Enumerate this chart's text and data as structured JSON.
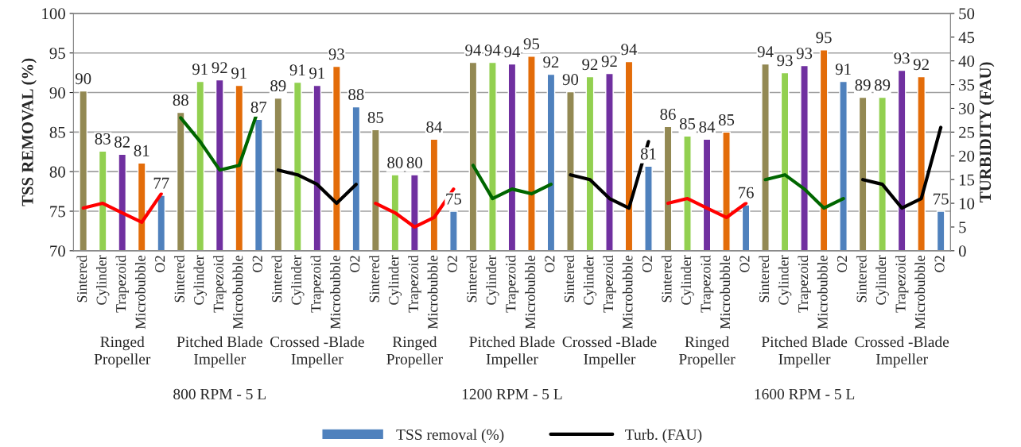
{
  "chart_data": {
    "type": "bar",
    "ylabel": "TSS REMOVAL (%)",
    "y2label": "TURBIDITY (FAU)",
    "categories": [
      "Sintered",
      "Cylinder",
      "Trapezoid",
      "Microbubble",
      "O2",
      "Sintered",
      "Cylinder",
      "Trapezoid",
      "Microbubble",
      "O2",
      "Sintered",
      "Cylinder",
      "Trapezoid",
      "Microbubble",
      "O2",
      "Sintered",
      "Cylinder",
      "Trapezoid",
      "Microbubble",
      "O2",
      "Sintered",
      "Cylinder",
      "Trapezoid",
      "Microbubble",
      "O2",
      "Sintered",
      "Cylinder",
      "Trapezoid",
      "Microbubble",
      "O2",
      "Sintered",
      "Cylinder",
      "Trapezoid",
      "Microbubble",
      "O2",
      "Sintered",
      "Cylinder",
      "Trapezoid",
      "Microbubble",
      "O2",
      "Sintered",
      "Cylinder",
      "Trapezoid",
      "Microbubble",
      "O2"
    ],
    "annotations": [
      "Ringed\nPropeller",
      "Pitched Blade\nImpeller",
      "Crossed -Blade\nImpeller",
      "Ringed\nPropeller",
      "Pitched Blade\nImpeller",
      "Crossed -Blade\nImpeller",
      "Ringed\nPropeller",
      "Pitched Blade\nImpeller",
      "Crossed -Blade\nImpeller",
      "800 RPM - 5 L",
      "1200 RPM - 5 L",
      "1600 RPM - 5 L"
    ],
    "series": [
      {
        "name": "TSS removal (%)",
        "color": "#4f81bd",
        "colors": [
          "#938953",
          "#92d050",
          "#7030a0",
          "#e36c09",
          "#4f81bd",
          "#938953",
          "#92d050",
          "#7030a0",
          "#e36c09",
          "#4f81bd",
          "#938953",
          "#92d050",
          "#7030a0",
          "#e36c09",
          "#4f81bd",
          "#938953",
          "#92d050",
          "#7030a0",
          "#e36c09",
          "#4f81bd",
          "#938953",
          "#92d050",
          "#7030a0",
          "#e36c09",
          "#4f81bd",
          "#938953",
          "#92d050",
          "#7030a0",
          "#e36c09",
          "#4f81bd",
          "#938953",
          "#92d050",
          "#7030a0",
          "#e36c09",
          "#4f81bd",
          "#938953",
          "#92d050",
          "#7030a0",
          "#e36c09",
          "#4f81bd",
          "#938953",
          "#92d050",
          "#7030a0",
          "#e36c09",
          "#4f81bd"
        ],
        "values": [
          90.2,
          82.6,
          82.2,
          81.1,
          77.0,
          87.5,
          91.4,
          91.6,
          90.9,
          86.6,
          89.3,
          91.3,
          90.9,
          93.3,
          88.2,
          85.3,
          79.6,
          79.6,
          84.1,
          75.0,
          93.8,
          93.8,
          93.6,
          94.6,
          92.3,
          90.1,
          92.0,
          92.4,
          93.9,
          80.7,
          85.7,
          84.5,
          84.1,
          85.0,
          75.8,
          93.6,
          92.5,
          93.4,
          95.4,
          91.4,
          89.4,
          89.4,
          92.8,
          92.0,
          75.0
        ],
        "value_labels": [
          "90",
          "83",
          "82",
          "81",
          "77",
          "88",
          "91",
          "92",
          "91",
          "87",
          "89",
          "91",
          "91",
          "93",
          "88",
          "85",
          "80",
          "80",
          "84",
          "75",
          "94",
          "94",
          "94",
          "95",
          "92",
          "90",
          "92",
          "92",
          "94",
          "81",
          "86",
          "85",
          "84",
          "85",
          "76",
          "94",
          "93",
          "93",
          "95",
          "91",
          "89",
          "89",
          "93",
          "92",
          "75"
        ]
      },
      {
        "type": "line",
        "axis": "y2",
        "color": "#ff0000",
        "values": [
          9,
          10,
          8,
          6,
          12,
          null,
          null,
          null,
          null,
          null,
          null,
          null,
          null,
          null,
          null,
          null,
          null,
          null,
          null,
          null,
          null,
          null,
          null,
          null,
          null,
          null,
          null,
          null,
          null,
          null,
          null,
          null,
          null,
          null,
          null,
          null,
          null,
          null,
          null,
          null,
          null,
          null,
          null,
          null,
          null
        ]
      },
      {
        "type": "line",
        "axis": "y2",
        "color": "#006600",
        "values": [
          null,
          null,
          null,
          null,
          null,
          28,
          23,
          17,
          18,
          30,
          null,
          null,
          null,
          null,
          null,
          null,
          null,
          null,
          null,
          null,
          null,
          null,
          null,
          null,
          null,
          null,
          null,
          null,
          null,
          null,
          null,
          null,
          null,
          null,
          null,
          null,
          null,
          null,
          null,
          null,
          null,
          null,
          null,
          null,
          null
        ]
      },
      {
        "name": "Turb. (FAU)",
        "type": "line",
        "axis": "y2",
        "color": "#000000",
        "values": [
          null,
          null,
          null,
          null,
          null,
          null,
          null,
          null,
          null,
          null,
          17,
          16,
          14,
          10,
          14,
          null,
          null,
          null,
          null,
          null,
          null,
          null,
          null,
          null,
          null,
          null,
          null,
          null,
          null,
          null,
          null,
          null,
          null,
          null,
          null,
          null,
          null,
          null,
          null,
          null,
          null,
          null,
          null,
          null,
          null
        ]
      },
      {
        "type": "line",
        "axis": "y2",
        "color": "#ff0000",
        "values": [
          null,
          null,
          null,
          null,
          null,
          null,
          null,
          null,
          null,
          null,
          null,
          null,
          null,
          null,
          null,
          10,
          8,
          5,
          7,
          13,
          null,
          null,
          null,
          null,
          null,
          null,
          null,
          null,
          null,
          null,
          null,
          null,
          null,
          null,
          null,
          null,
          null,
          null,
          null,
          null,
          null,
          null,
          null,
          null,
          null
        ]
      },
      {
        "type": "line",
        "axis": "y2",
        "color": "#006600",
        "values": [
          null,
          null,
          null,
          null,
          null,
          null,
          null,
          null,
          null,
          null,
          null,
          null,
          null,
          null,
          null,
          null,
          null,
          null,
          null,
          null,
          18,
          11,
          13,
          12,
          14,
          null,
          null,
          null,
          null,
          null,
          null,
          null,
          null,
          null,
          null,
          null,
          null,
          null,
          null,
          null,
          null,
          null,
          null,
          null,
          null
        ]
      },
      {
        "type": "line",
        "axis": "y2",
        "color": "#000000",
        "values": [
          null,
          null,
          null,
          null,
          null,
          null,
          null,
          null,
          null,
          null,
          null,
          null,
          null,
          null,
          null,
          null,
          null,
          null,
          null,
          null,
          null,
          null,
          null,
          null,
          null,
          16,
          15,
          11,
          9,
          23,
          null,
          null,
          null,
          null,
          null,
          null,
          null,
          null,
          null,
          null,
          null,
          null,
          null,
          null,
          null
        ]
      },
      {
        "type": "line",
        "axis": "y2",
        "color": "#ff0000",
        "values": [
          null,
          null,
          null,
          null,
          null,
          null,
          null,
          null,
          null,
          null,
          null,
          null,
          null,
          null,
          null,
          null,
          null,
          null,
          null,
          null,
          null,
          null,
          null,
          null,
          null,
          null,
          null,
          null,
          null,
          null,
          10,
          11,
          9,
          7,
          10,
          null,
          null,
          null,
          null,
          null,
          null,
          null,
          null,
          null,
          null
        ]
      },
      {
        "type": "line",
        "axis": "y2",
        "color": "#006600",
        "values": [
          null,
          null,
          null,
          null,
          null,
          null,
          null,
          null,
          null,
          null,
          null,
          null,
          null,
          null,
          null,
          null,
          null,
          null,
          null,
          null,
          null,
          null,
          null,
          null,
          null,
          null,
          null,
          null,
          null,
          null,
          null,
          null,
          null,
          null,
          null,
          15,
          16,
          13,
          9,
          11,
          null,
          null,
          null,
          null,
          null
        ]
      },
      {
        "type": "line",
        "axis": "y2",
        "color": "#000000",
        "values": [
          null,
          null,
          null,
          null,
          null,
          null,
          null,
          null,
          null,
          null,
          null,
          null,
          null,
          null,
          null,
          null,
          null,
          null,
          null,
          null,
          null,
          null,
          null,
          null,
          null,
          null,
          null,
          null,
          null,
          null,
          null,
          null,
          null,
          null,
          null,
          null,
          null,
          null,
          null,
          null,
          15,
          14,
          9,
          11,
          26
        ]
      }
    ],
    "ylim": [
      70,
      100
    ],
    "yticks": [
      70,
      75,
      80,
      85,
      90,
      95,
      100
    ],
    "y2lim": [
      0,
      50
    ],
    "y2ticks": [
      0,
      5,
      10,
      15,
      20,
      25,
      30,
      35,
      40,
      45,
      50
    ],
    "grid": "y",
    "legend": "bottom",
    "marker": "none",
    "line_style": "solid"
  }
}
